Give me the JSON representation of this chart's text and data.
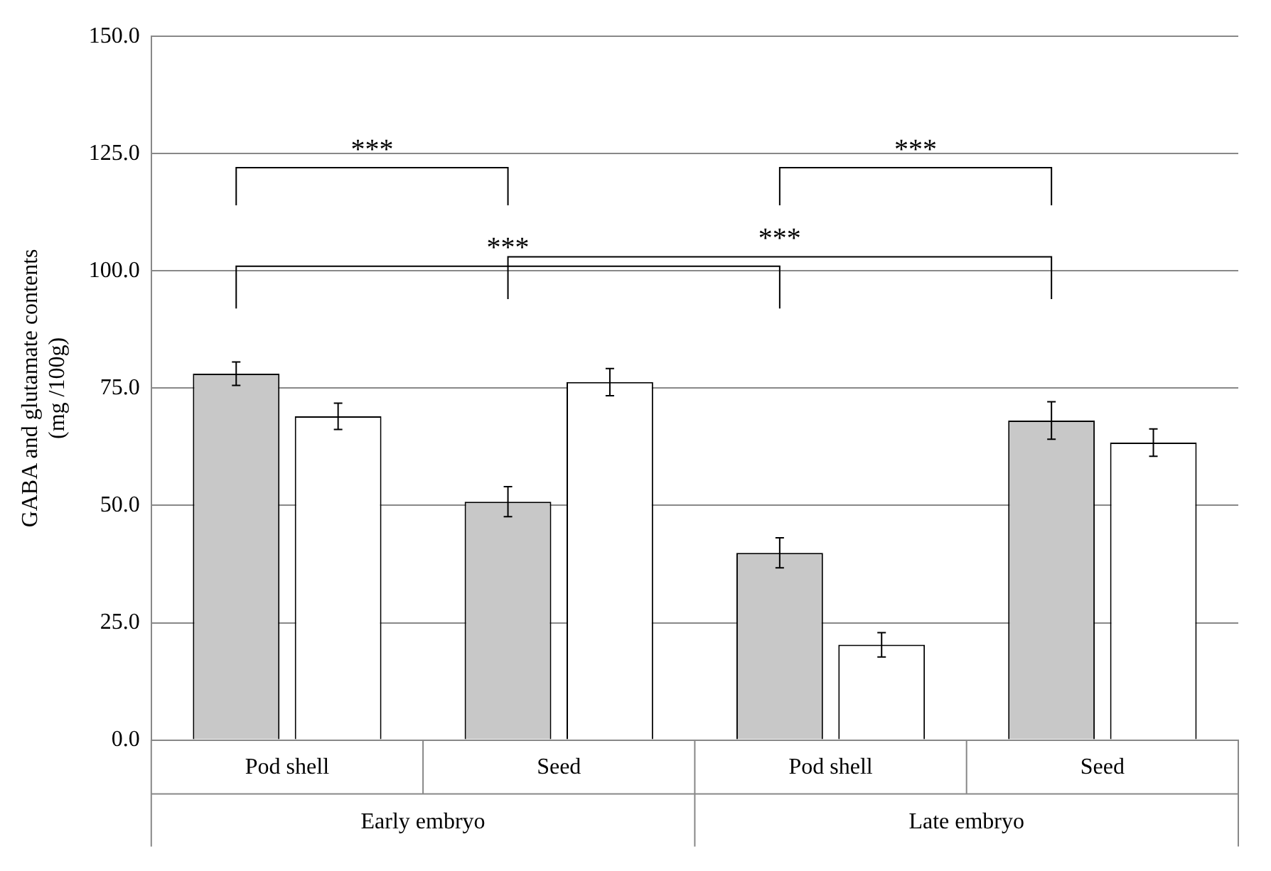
{
  "chart_data": {
    "type": "bar",
    "ylabel": "GABA and glutamate contents (mg /100g)",
    "categories": [
      "Pod shell",
      "Seed",
      "Pod shell",
      "Seed"
    ],
    "series": [
      {
        "color": "#c8c8c8",
        "values": [
          78.1,
          50.8,
          39.9,
          68.1
        ],
        "errors": [
          2.5,
          3.2,
          3.2,
          4.0
        ]
      },
      {
        "color": "#ffffff",
        "values": [
          69.0,
          76.3,
          20.3,
          63.4
        ],
        "errors": [
          2.8,
          2.9,
          2.6,
          2.9
        ]
      }
    ],
    "ylim": [
      0,
      150
    ],
    "yticks": [
      {
        "value": 0,
        "label": "0.0"
      },
      {
        "value": 25,
        "label": "25.0"
      },
      {
        "value": 50,
        "label": "50.0"
      },
      {
        "value": 75,
        "label": "75.0"
      },
      {
        "value": 100,
        "label": "100.0"
      },
      {
        "value": 125,
        "label": "125.0"
      },
      {
        "value": 150,
        "label": "150.0"
      }
    ],
    "grid": "y",
    "legend": false,
    "annotations": [
      "***",
      "***",
      "***",
      "***",
      "Early embryo",
      "Late embryo"
    ]
  }
}
